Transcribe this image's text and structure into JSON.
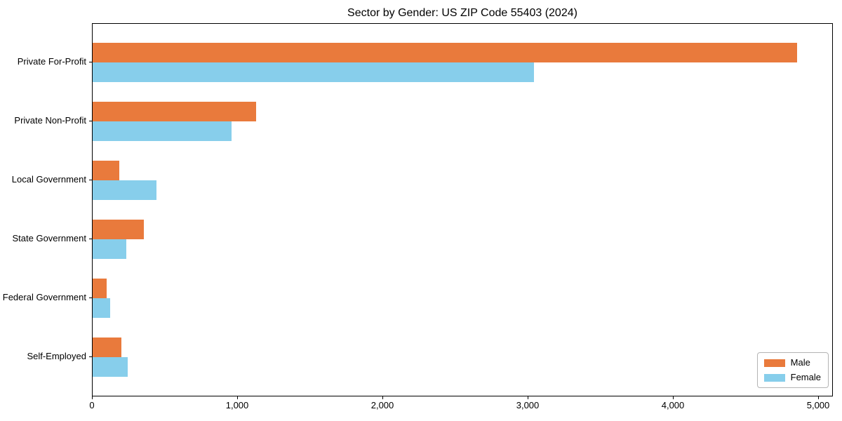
{
  "chart_data": {
    "type": "bar",
    "orientation": "horizontal",
    "title": "Sector by Gender: US ZIP Code 55403 (2024)",
    "categories": [
      "Private For-Profit",
      "Private Non-Profit",
      "Local Government",
      "State Government",
      "Federal Government",
      "Self-Employed"
    ],
    "series": [
      {
        "name": "Male",
        "color": "#e97a3c",
        "values": [
          4850,
          1125,
          185,
          355,
          95,
          200
        ]
      },
      {
        "name": "Female",
        "color": "#87ceeb",
        "values": [
          3040,
          955,
          440,
          230,
          120,
          240
        ]
      }
    ],
    "xlabel": "",
    "ylabel": "",
    "xlim": [
      0,
      5000
    ],
    "x_tick_values": [
      0,
      1000,
      2000,
      3000,
      4000,
      5000
    ],
    "x_tick_labels": [
      "0",
      "1,000",
      "2,000",
      "3,000",
      "4,000",
      "5,000"
    ],
    "grid": false,
    "legend": {
      "position": "lower right",
      "entries": [
        "Male",
        "Female"
      ]
    },
    "colors": {
      "axis": "#000000",
      "background": "#ffffff"
    }
  }
}
